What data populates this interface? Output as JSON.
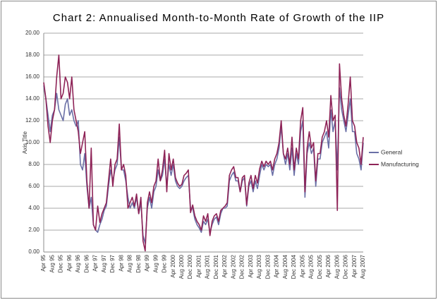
{
  "chart_data": {
    "type": "line",
    "title": "Chart 2: Annualised Month-to-Month Rate of Growth of the IIP",
    "y_label": "Axis Title",
    "categories": [
      "Apr 95",
      null,
      null,
      null,
      "Aug 95",
      null,
      null,
      null,
      "Dec 95",
      null,
      null,
      null,
      "Apr 96",
      null,
      null,
      null,
      "Aug 96",
      null,
      null,
      null,
      "Dec 96",
      null,
      null,
      null,
      "Apr 97",
      null,
      null,
      null,
      "Aug 97",
      null,
      null,
      null,
      "Dec 97",
      null,
      null,
      null,
      "Apr 98",
      null,
      null,
      null,
      "Aug 98",
      null,
      null,
      null,
      "Dec 98",
      null,
      null,
      null,
      "Apr 99",
      null,
      null,
      null,
      "Aug 99",
      null,
      null,
      null,
      "Dec 99",
      null,
      null,
      null,
      "Apr 2000",
      null,
      null,
      null,
      "Aug 2000",
      null,
      null,
      null,
      "Dec 2000",
      null,
      null,
      null,
      "Apr 2001",
      null,
      null,
      null,
      "Aug 2001",
      null,
      null,
      null,
      "Dec 2001",
      null,
      null,
      null,
      "Apr 2002",
      null,
      null,
      null,
      "Aug 2002",
      null,
      null,
      null,
      "Dec 2002",
      null,
      null,
      null,
      "Apr 2003",
      null,
      null,
      null,
      "Aug 2003",
      null,
      null,
      null,
      "Dec 2003",
      null,
      null,
      null,
      "Apr 2004",
      null,
      null,
      null,
      "Aug 2004",
      null,
      null,
      null,
      "Dec 2004",
      null,
      null,
      null,
      "Apr 2005",
      null,
      null,
      null,
      "Aug 2005",
      null,
      null,
      null,
      "Dec 2005",
      null,
      null,
      null,
      "Apr 2006",
      null,
      null,
      null,
      "Aug 2006",
      null,
      null,
      null,
      "Dec 2006",
      null,
      null,
      null,
      "Apr 2007",
      null,
      null,
      null,
      "Aug 2007"
    ],
    "series": [
      {
        "name": "General",
        "color": "#6a6fa6",
        "values": [
          15.2,
          14,
          12.5,
          11,
          12.5,
          13,
          14.5,
          13,
          12.5,
          12,
          13.5,
          14,
          12.5,
          13,
          12,
          11.5,
          12,
          8,
          7.5,
          9,
          6,
          4,
          5,
          2.5,
          2,
          1.8,
          2.5,
          3,
          3.8,
          4.2,
          6,
          7.5,
          6.5,
          7.5,
          8,
          10.5,
          7.5,
          7.5,
          6.5,
          5,
          4,
          4.5,
          4,
          5,
          3.5,
          4.5,
          1.5,
          0.8,
          4,
          5,
          4,
          5.5,
          6,
          7.5,
          6.5,
          7,
          8.5,
          6,
          8,
          7,
          8,
          6.5,
          6,
          5.8,
          6,
          6.5,
          6.8,
          7,
          4,
          4,
          3,
          2.5,
          2.2,
          1.8,
          2.8,
          2.5,
          3,
          1.8,
          2.5,
          3,
          3.2,
          2.5,
          3.5,
          4,
          4,
          4.2,
          6.5,
          7,
          7.3,
          6.5,
          6.5,
          5.5,
          6.5,
          6.8,
          4.2,
          6,
          6.5,
          5.5,
          6.5,
          5.8,
          7,
          8,
          7.5,
          8,
          7.8,
          8,
          7,
          8,
          8.5,
          9.5,
          11.5,
          9,
          8,
          9,
          7.5,
          9.5,
          7,
          9,
          8,
          11,
          12,
          5,
          9,
          10,
          9,
          9.5,
          6,
          8.5,
          8.5,
          10,
          10.5,
          11,
          9.5,
          13,
          11,
          12,
          7.5,
          15,
          13,
          12,
          11,
          12.5,
          14,
          11,
          11,
          9,
          8.5,
          7.5,
          10
        ]
      },
      {
        "name": "Manufacturing",
        "color": "#8e2357",
        "values": [
          15.5,
          14,
          11.5,
          10,
          12,
          13,
          16,
          18,
          14,
          14.5,
          16,
          15.5,
          14,
          16,
          13,
          12,
          11,
          9,
          10,
          11,
          6.5,
          4,
          9.5,
          2.5,
          2,
          4.2,
          2.7,
          3.5,
          4,
          4.5,
          6.5,
          8.5,
          6,
          8,
          8.5,
          11.7,
          7.5,
          8,
          7,
          4,
          4.5,
          5,
          4.2,
          5.3,
          3.5,
          5,
          1,
          0.1,
          4.5,
          5.5,
          4.5,
          6,
          6.5,
          8.5,
          6.5,
          7.5,
          9.3,
          5.5,
          9,
          7.5,
          8.5,
          6.8,
          6.3,
          6,
          6.2,
          7,
          7.2,
          7.5,
          3.6,
          4.3,
          3.3,
          2.8,
          2.5,
          2,
          3.3,
          2.8,
          3.5,
          1.5,
          2.8,
          3.3,
          3.5,
          2.8,
          3.8,
          4,
          4.2,
          4.5,
          7,
          7.5,
          7.8,
          6.8,
          6.8,
          5.5,
          6.8,
          7,
          4.3,
          6.3,
          7,
          5.8,
          7,
          6.3,
          7.6,
          8.3,
          7.8,
          8.3,
          8,
          8.3,
          7.5,
          8.5,
          9,
          10,
          12,
          9,
          8.5,
          9.5,
          8,
          10.5,
          7.5,
          9.5,
          8.5,
          12,
          13.2,
          5.5,
          9.5,
          11,
          9.5,
          10,
          6.5,
          9,
          9,
          10.5,
          11,
          12,
          10.5,
          14.3,
          12,
          12.5,
          3.8,
          17.2,
          14,
          12.5,
          11.5,
          13.5,
          16,
          12,
          11.5,
          10,
          9.5,
          8,
          10.5
        ]
      }
    ],
    "ylim": [
      0,
      20
    ],
    "yticks": [
      {
        "value": 0,
        "label": "0.00"
      },
      {
        "value": 2,
        "label": "2.00"
      },
      {
        "value": 4,
        "label": "4.00"
      },
      {
        "value": 6,
        "label": "6.00"
      },
      {
        "value": 8,
        "label": "8.00"
      },
      {
        "value": 10,
        "label": "10.00"
      },
      {
        "value": 12,
        "label": "12.00"
      },
      {
        "value": 14,
        "label": "14.00"
      },
      {
        "value": 16,
        "label": "16.00"
      },
      {
        "value": 18,
        "label": "18.00"
      },
      {
        "value": 20,
        "label": "20.00"
      }
    ],
    "grid": true,
    "legend": "right"
  }
}
